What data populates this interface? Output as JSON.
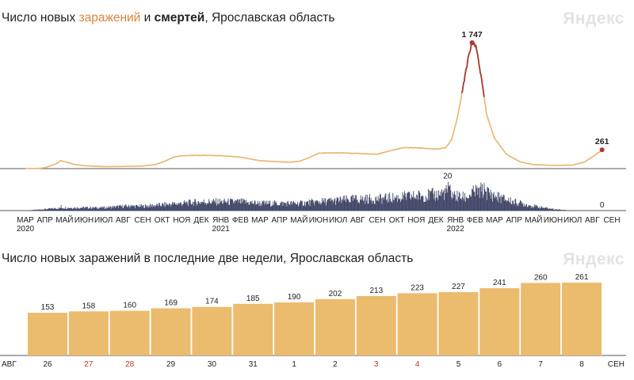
{
  "chart_data": [
    {
      "type": "line",
      "title_parts": [
        "Число новых ",
        "заражений",
        " и ",
        "смертей",
        ", Ярославская область"
      ],
      "brand": "Яндекс",
      "x_axis": {
        "months": [
          "МАР",
          "АПР",
          "МАЙ",
          "ИЮН",
          "ИЮЛ",
          "АВГ",
          "СЕН",
          "ОКТ",
          "НОЯ",
          "ДЕК",
          "ЯНВ",
          "ФЕВ",
          "МАР",
          "АПР",
          "МАЙ",
          "ИЮН",
          "ИЮЛ",
          "АВГ",
          "СЕН",
          "ОКТ",
          "НОЯ",
          "ДЕК",
          "ЯНВ",
          "ФЕВ",
          "МАР",
          "АПР",
          "МАЙ",
          "ИЮН",
          "ИЮЛ",
          "АВГ",
          "СЕН"
        ],
        "years": [
          {
            "label": "2020",
            "month_index": 0
          },
          {
            "label": "2021",
            "month_index": 10
          },
          {
            "label": "2022",
            "month_index": 22
          }
        ]
      },
      "series": [
        {
          "key": "infections",
          "color": "#e8b56a",
          "peak_color": "#a83a32",
          "ylim": [
            0,
            1900
          ],
          "points": [
            {
              "t": 0.0,
              "v": 0
            },
            {
              "t": 0.6,
              "v": 2
            },
            {
              "t": 1.0,
              "v": 12
            },
            {
              "t": 1.3,
              "v": 40
            },
            {
              "t": 1.6,
              "v": 70
            },
            {
              "t": 1.8,
              "v": 110
            },
            {
              "t": 2.1,
              "v": 90
            },
            {
              "t": 2.5,
              "v": 60
            },
            {
              "t": 3.0,
              "v": 40
            },
            {
              "t": 4.0,
              "v": 28
            },
            {
              "t": 5.0,
              "v": 30
            },
            {
              "t": 6.0,
              "v": 35
            },
            {
              "t": 6.7,
              "v": 60
            },
            {
              "t": 7.2,
              "v": 110
            },
            {
              "t": 7.6,
              "v": 160
            },
            {
              "t": 8.0,
              "v": 180
            },
            {
              "t": 9.0,
              "v": 185
            },
            {
              "t": 10.0,
              "v": 180
            },
            {
              "t": 11.0,
              "v": 160
            },
            {
              "t": 12.0,
              "v": 110
            },
            {
              "t": 13.0,
              "v": 95
            },
            {
              "t": 13.5,
              "v": 90
            },
            {
              "t": 14.0,
              "v": 100
            },
            {
              "t": 14.5,
              "v": 150
            },
            {
              "t": 15.0,
              "v": 215
            },
            {
              "t": 16.0,
              "v": 220
            },
            {
              "t": 17.0,
              "v": 210
            },
            {
              "t": 18.0,
              "v": 200
            },
            {
              "t": 18.7,
              "v": 250
            },
            {
              "t": 19.3,
              "v": 290
            },
            {
              "t": 20.0,
              "v": 290
            },
            {
              "t": 21.0,
              "v": 270
            },
            {
              "t": 21.5,
              "v": 290
            },
            {
              "t": 21.8,
              "v": 400
            },
            {
              "t": 22.1,
              "v": 700
            },
            {
              "t": 22.4,
              "v": 1150
            },
            {
              "t": 22.7,
              "v": 1600
            },
            {
              "t": 22.85,
              "v": 1747
            },
            {
              "t": 23.05,
              "v": 1700
            },
            {
              "t": 23.3,
              "v": 1300
            },
            {
              "t": 23.6,
              "v": 750
            },
            {
              "t": 24.0,
              "v": 420
            },
            {
              "t": 24.6,
              "v": 200
            },
            {
              "t": 25.3,
              "v": 95
            },
            {
              "t": 26.0,
              "v": 55
            },
            {
              "t": 27.0,
              "v": 45
            },
            {
              "t": 28.0,
              "v": 50
            },
            {
              "t": 28.6,
              "v": 90
            },
            {
              "t": 29.1,
              "v": 180
            },
            {
              "t": 29.5,
              "v": 261
            }
          ],
          "labels": [
            {
              "text": "1 747",
              "t": 22.85,
              "v": 1747
            },
            {
              "text": "261",
              "t": 29.5,
              "v": 261
            }
          ]
        },
        {
          "key": "deaths",
          "color": "#3f4466",
          "ylim": [
            0,
            22
          ],
          "profile": [
            {
              "t": 0.0,
              "v": 0
            },
            {
              "t": 1.0,
              "v": 1
            },
            {
              "t": 2.0,
              "v": 2
            },
            {
              "t": 3.0,
              "v": 2
            },
            {
              "t": 4.0,
              "v": 2
            },
            {
              "t": 5.0,
              "v": 3
            },
            {
              "t": 6.0,
              "v": 3
            },
            {
              "t": 7.0,
              "v": 4
            },
            {
              "t": 8.0,
              "v": 5
            },
            {
              "t": 9.0,
              "v": 6
            },
            {
              "t": 10.0,
              "v": 6
            },
            {
              "t": 11.0,
              "v": 6
            },
            {
              "t": 12.0,
              "v": 5
            },
            {
              "t": 13.0,
              "v": 5
            },
            {
              "t": 14.0,
              "v": 5
            },
            {
              "t": 15.0,
              "v": 6
            },
            {
              "t": 16.0,
              "v": 7
            },
            {
              "t": 17.0,
              "v": 8
            },
            {
              "t": 18.0,
              "v": 8
            },
            {
              "t": 19.0,
              "v": 9
            },
            {
              "t": 20.0,
              "v": 10
            },
            {
              "t": 21.0,
              "v": 11
            },
            {
              "t": 21.6,
              "v": 13
            },
            {
              "t": 22.0,
              "v": 10
            },
            {
              "t": 22.5,
              "v": 9
            },
            {
              "t": 23.0,
              "v": 13
            },
            {
              "t": 23.4,
              "v": 14
            },
            {
              "t": 24.0,
              "v": 10
            },
            {
              "t": 25.0,
              "v": 6
            },
            {
              "t": 26.0,
              "v": 3
            },
            {
              "t": 27.0,
              "v": 1
            },
            {
              "t": 28.0,
              "v": 0
            },
            {
              "t": 29.5,
              "v": 0
            }
          ],
          "spikes": [
            {
              "t": 1.8,
              "v": 4
            },
            {
              "t": 5.4,
              "v": 4
            },
            {
              "t": 21.6,
              "v": 20
            },
            {
              "t": 21.7,
              "v": 18
            },
            {
              "t": 23.2,
              "v": 16
            },
            {
              "t": 23.5,
              "v": 15
            }
          ],
          "labels": [
            {
              "text": "20",
              "t": 21.6,
              "v": 20
            },
            {
              "text": "0",
              "t": 29.5,
              "v": 0
            }
          ]
        }
      ]
    },
    {
      "type": "bar",
      "title": "Число новых заражений в последние две недели, Ярославская область",
      "brand": "Яндекс",
      "bar_color": "#ebbb6e",
      "start_label": "АВГ",
      "end_label": "СЕН",
      "categories": [
        "26",
        "27",
        "28",
        "29",
        "30",
        "31",
        "1",
        "2",
        "3",
        "4",
        "5",
        "6",
        "7",
        "8"
      ],
      "weekend_flags": [
        false,
        true,
        true,
        false,
        false,
        false,
        false,
        false,
        true,
        true,
        false,
        false,
        false,
        false
      ],
      "values": [
        153,
        158,
        160,
        169,
        174,
        185,
        190,
        202,
        213,
        223,
        227,
        241,
        260,
        261
      ],
      "ylim": [
        0,
        295
      ],
      "weekday_color": "#222222",
      "weekend_color": "#c0392b"
    }
  ]
}
